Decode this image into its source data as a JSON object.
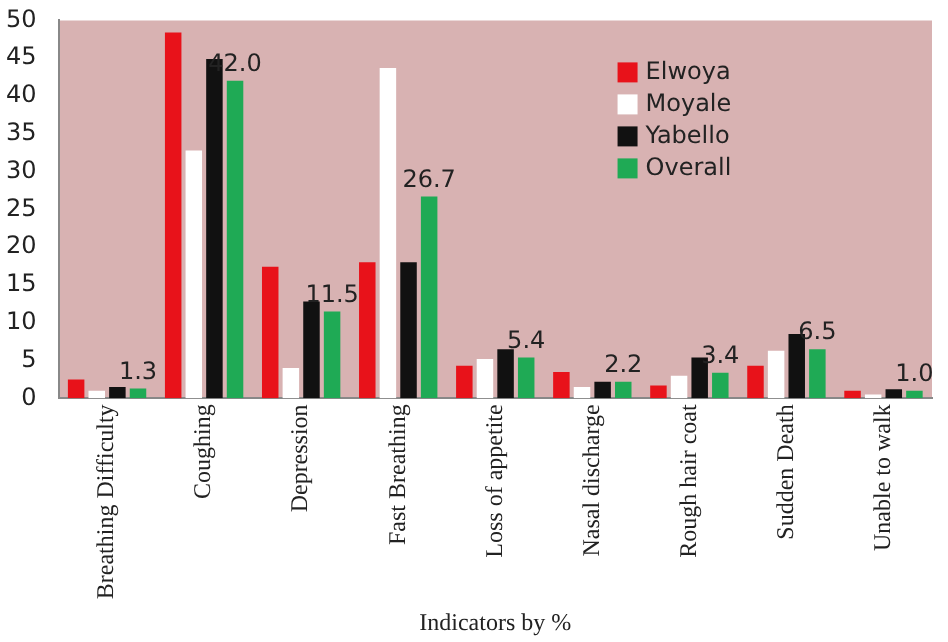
{
  "chart_data": {
    "type": "bar",
    "xlabel": "Indicators by %",
    "categories": [
      "Breathing Difficulty",
      "Coughing",
      "Depression",
      "Fast Breathing",
      "Loss of appetite",
      "Nasal discharge",
      "Rough hair coat",
      "Sudden Death",
      "Unable to walk"
    ],
    "series": [
      {
        "name": "Elwoya",
        "color": "#e8121a",
        "values": [
          2.5,
          48.4,
          17.4,
          18,
          4.3,
          3.5,
          1.7,
          4.3,
          1
        ]
      },
      {
        "name": "Moyale",
        "color": "#ffffff",
        "values": [
          1,
          32.8,
          4,
          43.7,
          5.2,
          1.5,
          3,
          6.3,
          0.5
        ]
      },
      {
        "name": "Yabello",
        "color": "#111111",
        "values": [
          1.5,
          44.9,
          12.8,
          18,
          6.5,
          2.2,
          5.4,
          8.5,
          1.2
        ]
      },
      {
        "name": "Overall",
        "color": "#1faa55",
        "values": [
          1.3,
          42.0,
          11.5,
          26.7,
          5.4,
          2.2,
          3.4,
          6.5,
          1.0
        ],
        "value_labels": [
          "1.3",
          "42.0",
          "11.5",
          "26.7",
          "5.4",
          "2.2",
          "3.4",
          "6.5",
          "1.0"
        ]
      }
    ],
    "ylim": [
      0,
      50
    ],
    "yticks": [
      0,
      5,
      10,
      15,
      20,
      25,
      30,
      35,
      40,
      45,
      50
    ],
    "grid": false,
    "legend": "top right"
  }
}
